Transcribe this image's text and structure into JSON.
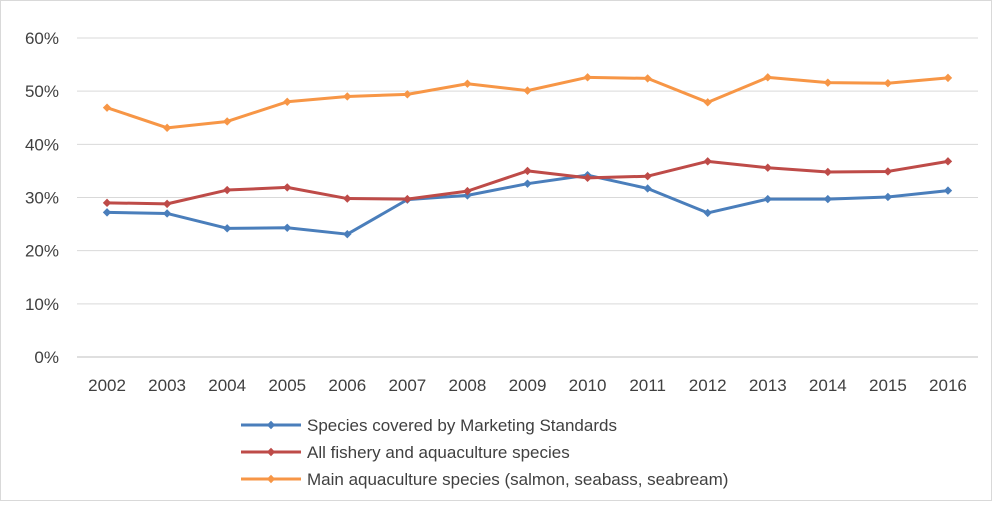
{
  "chart_data": {
    "type": "line",
    "categories": [
      "2002",
      "2003",
      "2004",
      "2005",
      "2006",
      "2007",
      "2008",
      "2009",
      "2010",
      "2011",
      "2012",
      "2013",
      "2014",
      "2015",
      "2016"
    ],
    "ylim": [
      0,
      0.6
    ],
    "yticks": [
      {
        "value": 0,
        "label": "0%"
      },
      {
        "value": 0.1,
        "label": "10%"
      },
      {
        "value": 0.2,
        "label": "20%"
      },
      {
        "value": 0.3,
        "label": "30%"
      },
      {
        "value": 0.4,
        "label": "40%"
      },
      {
        "value": 0.5,
        "label": "50%"
      },
      {
        "value": 0.6,
        "label": "60%"
      }
    ],
    "grid": true,
    "legend_position": "bottom",
    "series": [
      {
        "name": "Species covered by Marketing Standards",
        "color": "#4A7EBB",
        "values": [
          0.272,
          0.27,
          0.242,
          0.243,
          0.231,
          0.296,
          0.304,
          0.326,
          0.342,
          0.317,
          0.271,
          0.297,
          0.297,
          0.301,
          0.313
        ]
      },
      {
        "name": "All fishery and aquaculture species",
        "color": "#BE4B48",
        "values": [
          0.29,
          0.288,
          0.314,
          0.319,
          0.298,
          0.297,
          0.312,
          0.35,
          0.337,
          0.34,
          0.368,
          0.356,
          0.348,
          0.349,
          0.368
        ]
      },
      {
        "name": "Main aquaculture species (salmon, seabass, seabream)",
        "color": "#F79646",
        "values": [
          0.469,
          0.431,
          0.443,
          0.48,
          0.49,
          0.494,
          0.514,
          0.501,
          0.526,
          0.524,
          0.479,
          0.526,
          0.516,
          0.515,
          0.525
        ]
      }
    ]
  }
}
